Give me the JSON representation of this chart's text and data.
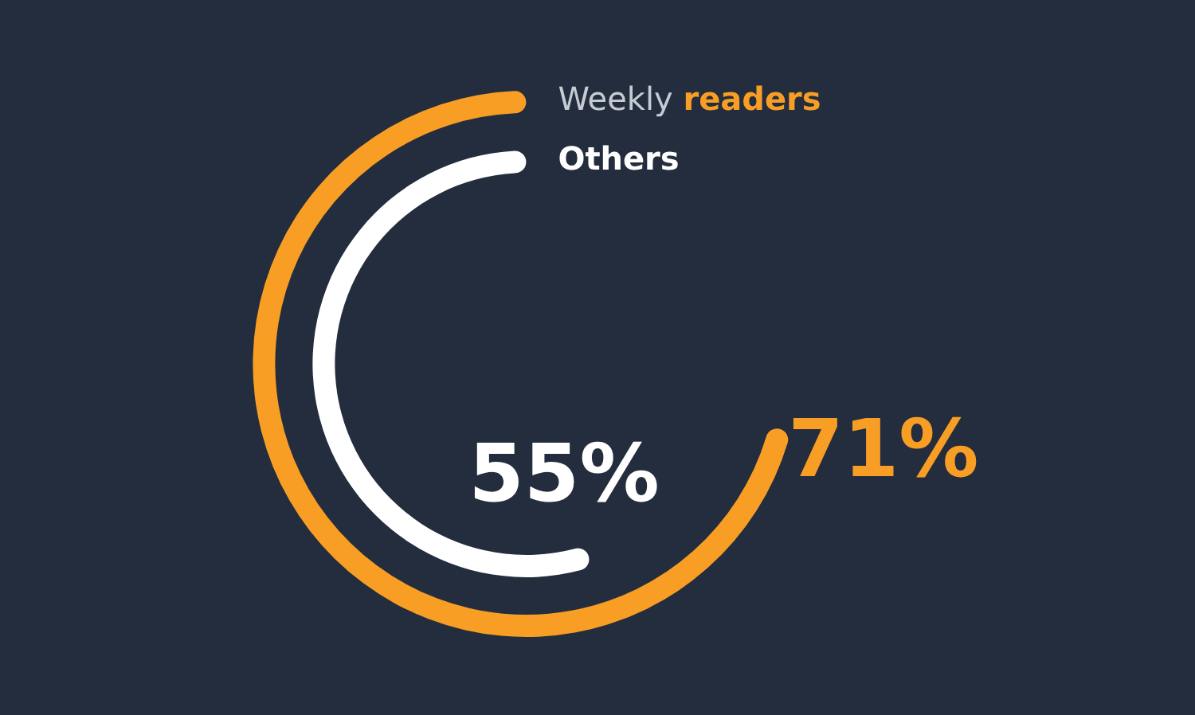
{
  "chart_data": {
    "type": "donut",
    "categories": [
      null
    ],
    "series": [
      {
        "name": "Others",
        "color": "#ffffff",
        "values": [
          55
        ],
        "value_labels": [
          "55%"
        ]
      },
      {
        "name": "Weekly readers",
        "color": "#f89e25",
        "values": [
          71
        ],
        "value_labels": [
          "71%"
        ]
      }
    ]
  }
}
